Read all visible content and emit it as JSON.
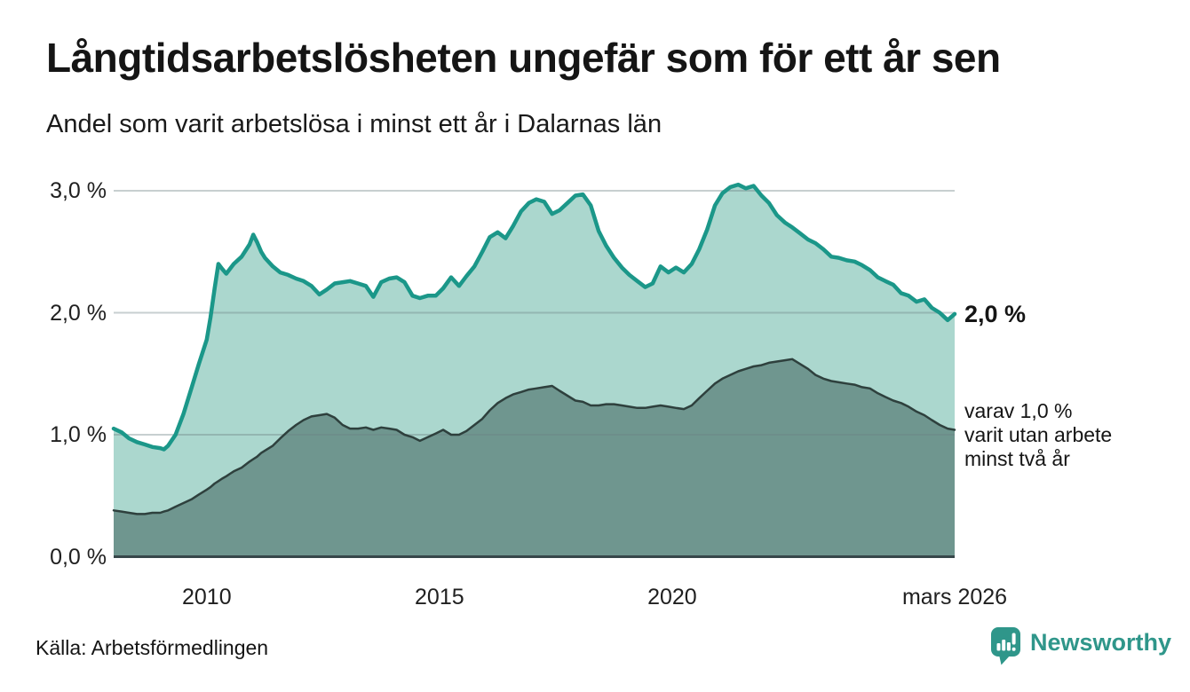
{
  "header": {
    "title": "Långtidsarbetslösheten ungefär som för ett år sen",
    "subtitle": "Andel som varit arbetslösa i minst ett år i Dalarnas län"
  },
  "chart_data": {
    "type": "area",
    "title": "Långtidsarbetslösheten ungefär som för ett år sen",
    "subtitle": "Andel som varit arbetslösa i minst ett år i Dalarnas län",
    "unit": "%",
    "xlim": [
      2008.0,
      2026.07
    ],
    "ylim": [
      0,
      3.2
    ],
    "grid": true,
    "grid_color": "rgba(108,130,132,0.38)",
    "baseline_color": "#37474a",
    "x_years": [
      2008.0,
      2008.17,
      2008.33,
      2008.5,
      2008.67,
      2008.83,
      2009.0,
      2009.08,
      2009.17,
      2009.33,
      2009.5,
      2009.67,
      2009.83,
      2010.0,
      2010.08,
      2010.17,
      2010.25,
      2010.33,
      2010.42,
      2010.5,
      2010.58,
      2010.75,
      2010.92,
      2011.0,
      2011.08,
      2011.17,
      2011.25,
      2011.42,
      2011.58,
      2011.75,
      2011.92,
      2012.08,
      2012.25,
      2012.42,
      2012.58,
      2012.75,
      2012.92,
      2013.08,
      2013.25,
      2013.42,
      2013.58,
      2013.75,
      2013.92,
      2014.08,
      2014.25,
      2014.42,
      2014.58,
      2014.75,
      2014.92,
      2015.08,
      2015.25,
      2015.42,
      2015.58,
      2015.75,
      2015.92,
      2016.08,
      2016.25,
      2016.42,
      2016.58,
      2016.75,
      2016.92,
      2017.08,
      2017.25,
      2017.42,
      2017.58,
      2017.75,
      2017.92,
      2018.08,
      2018.25,
      2018.42,
      2018.58,
      2018.75,
      2018.92,
      2019.08,
      2019.25,
      2019.42,
      2019.58,
      2019.75,
      2019.92,
      2020.08,
      2020.25,
      2020.42,
      2020.58,
      2020.75,
      2020.92,
      2021.08,
      2021.25,
      2021.42,
      2021.58,
      2021.75,
      2021.92,
      2022.08,
      2022.25,
      2022.42,
      2022.58,
      2022.75,
      2022.92,
      2023.08,
      2023.25,
      2023.42,
      2023.58,
      2023.75,
      2023.92,
      2024.08,
      2024.25,
      2024.42,
      2024.58,
      2024.75,
      2024.92,
      2025.08,
      2025.25,
      2025.42,
      2025.58,
      2025.75,
      2025.92,
      2026.07
    ],
    "series": [
      {
        "name": "Andel som varit arbetslösa minst ett år",
        "line_color": "#1b9789",
        "fill_color": "#abd7ce",
        "line_width": 4.5,
        "values": [
          1.05,
          1.02,
          0.97,
          0.94,
          0.92,
          0.9,
          0.89,
          0.88,
          0.91,
          1.0,
          1.17,
          1.38,
          1.58,
          1.78,
          1.96,
          2.2,
          2.4,
          2.36,
          2.32,
          2.36,
          2.4,
          2.46,
          2.56,
          2.64,
          2.58,
          2.5,
          2.45,
          2.38,
          2.33,
          2.31,
          2.28,
          2.26,
          2.22,
          2.15,
          2.19,
          2.24,
          2.25,
          2.26,
          2.24,
          2.22,
          2.13,
          2.25,
          2.28,
          2.29,
          2.25,
          2.14,
          2.12,
          2.14,
          2.14,
          2.2,
          2.29,
          2.22,
          2.3,
          2.38,
          2.5,
          2.62,
          2.66,
          2.61,
          2.71,
          2.83,
          2.9,
          2.93,
          2.91,
          2.81,
          2.84,
          2.9,
          2.96,
          2.97,
          2.88,
          2.67,
          2.55,
          2.45,
          2.37,
          2.31,
          2.26,
          2.21,
          2.24,
          2.38,
          2.33,
          2.37,
          2.33,
          2.4,
          2.52,
          2.68,
          2.88,
          2.98,
          3.03,
          3.05,
          3.02,
          3.04,
          2.96,
          2.9,
          2.8,
          2.74,
          2.7,
          2.65,
          2.6,
          2.57,
          2.52,
          2.46,
          2.45,
          2.43,
          2.42,
          2.39,
          2.35,
          2.29,
          2.26,
          2.23,
          2.16,
          2.14,
          2.09,
          2.11,
          2.04,
          2.0,
          1.94,
          1.99
        ]
      },
      {
        "name": "varav arbetslösa minst två år",
        "line_color": "#2e403d",
        "fill_color": "#6f968f",
        "line_width": 2.5,
        "values": [
          0.38,
          0.37,
          0.36,
          0.35,
          0.35,
          0.36,
          0.36,
          0.37,
          0.38,
          0.41,
          0.44,
          0.47,
          0.51,
          0.55,
          0.57,
          0.6,
          0.62,
          0.64,
          0.66,
          0.68,
          0.7,
          0.73,
          0.78,
          0.8,
          0.82,
          0.85,
          0.87,
          0.91,
          0.97,
          1.03,
          1.08,
          1.12,
          1.15,
          1.16,
          1.17,
          1.14,
          1.08,
          1.05,
          1.05,
          1.06,
          1.04,
          1.06,
          1.05,
          1.04,
          1.0,
          0.98,
          0.95,
          0.98,
          1.01,
          1.04,
          1.0,
          1.0,
          1.03,
          1.08,
          1.13,
          1.2,
          1.26,
          1.3,
          1.33,
          1.35,
          1.37,
          1.38,
          1.39,
          1.4,
          1.36,
          1.32,
          1.28,
          1.27,
          1.24,
          1.24,
          1.25,
          1.25,
          1.24,
          1.23,
          1.22,
          1.22,
          1.23,
          1.24,
          1.23,
          1.22,
          1.21,
          1.24,
          1.3,
          1.36,
          1.42,
          1.46,
          1.49,
          1.52,
          1.54,
          1.56,
          1.57,
          1.59,
          1.6,
          1.61,
          1.62,
          1.58,
          1.54,
          1.49,
          1.46,
          1.44,
          1.43,
          1.42,
          1.41,
          1.39,
          1.38,
          1.34,
          1.31,
          1.28,
          1.26,
          1.23,
          1.19,
          1.16,
          1.12,
          1.08,
          1.05,
          1.04
        ]
      }
    ],
    "y_ticks": [
      {
        "value": 3,
        "label": "3,0 %"
      },
      {
        "value": 2,
        "label": "2,0 %"
      },
      {
        "value": 1,
        "label": "1,0 %"
      },
      {
        "value": 0,
        "label": "0,0 %"
      }
    ],
    "x_ticks": [
      {
        "value": 2010,
        "label": "2010"
      },
      {
        "value": 2015,
        "label": "2015"
      },
      {
        "value": 2020,
        "label": "2020"
      },
      {
        "value": 2026.07,
        "label": "mars 2026"
      }
    ],
    "annotations": {
      "end_value": "2,0 %",
      "secondary": "varav 1,0 %\nvarit utan arbete\nminst två år"
    },
    "legend_position": "right-annotations"
  },
  "footer": {
    "source": "Källa: Arbetsförmedlingen",
    "brand": "Newsworthy"
  },
  "colors": {
    "accent_teal": "#1b9789",
    "light_fill": "#abd7ce",
    "dark_fill": "#6f968f",
    "dark_line": "#2e403d",
    "brand_teal": "#2f968a"
  }
}
